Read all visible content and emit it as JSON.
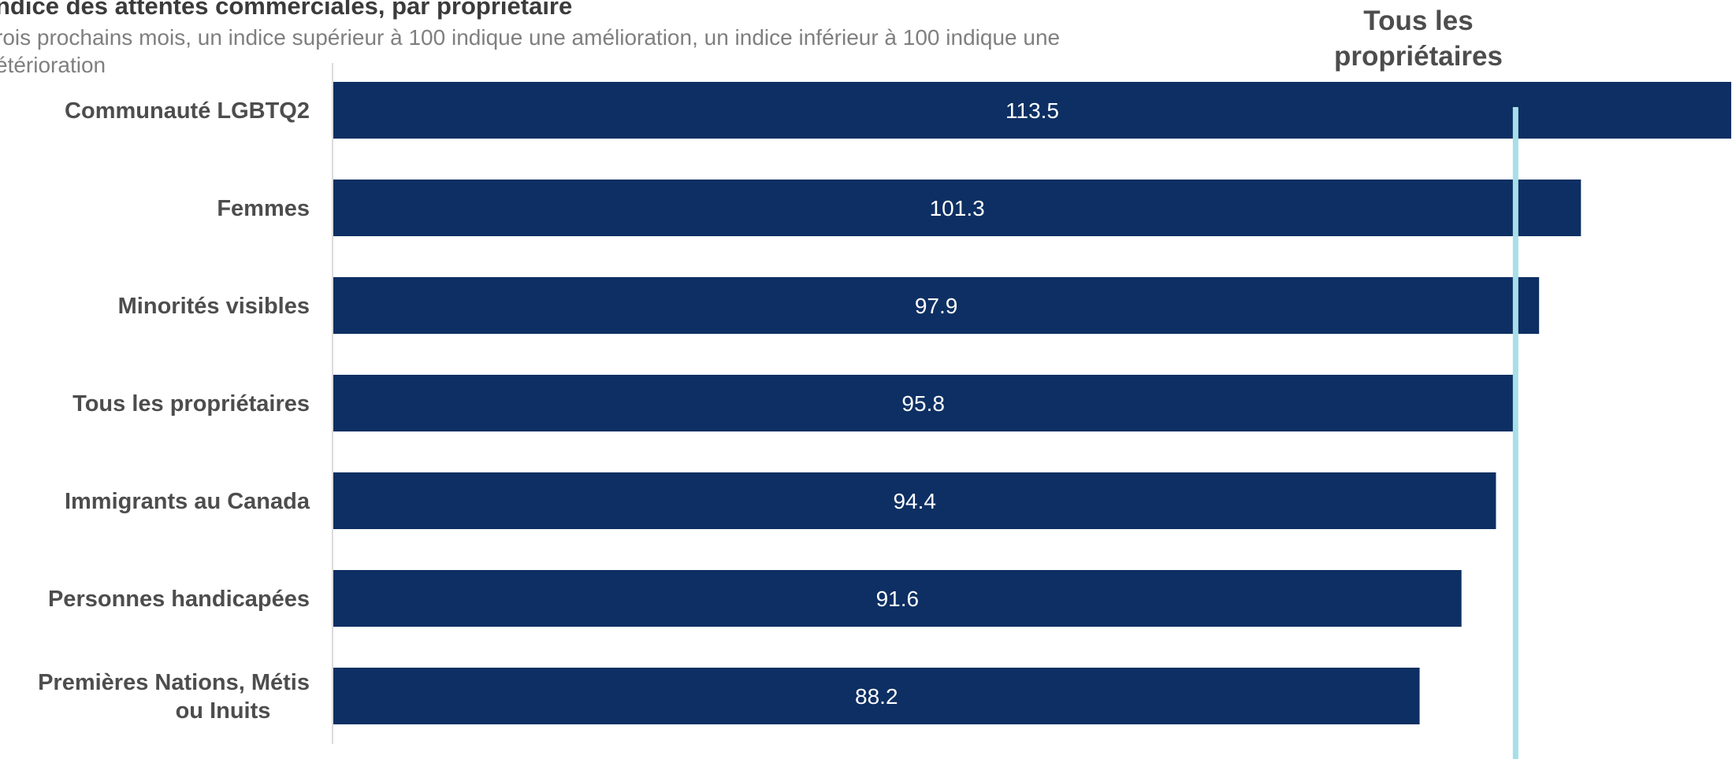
{
  "colors": {
    "bar": "#0d2f63",
    "reference_line": "#a7dfe8",
    "axis_line": "#d0d0d0",
    "title": "#3b3b3b",
    "subtitle": "#7f7f7f",
    "category_label": "#4d4d4d",
    "value_label": "#ffffff"
  },
  "chart_data": {
    "type": "bar",
    "orientation": "horizontal",
    "title": "ndice des attentes commerciales, par propriétaire",
    "subtitle": "rois prochains mois, un indice supérieur à 100 indique une amélioration, un indice inférieur à 100 indique une\nétérioration",
    "categories": [
      [
        "Communauté LGBTQ2"
      ],
      [
        "Femmes"
      ],
      [
        "Minorités visibles"
      ],
      [
        "Tous les propriétaires"
      ],
      [
        "Immigrants au Canada"
      ],
      [
        "Personnes handicapées"
      ],
      [
        "Premières Nations, Métis",
        "ou Inuits"
      ]
    ],
    "values": [
      113.5,
      101.3,
      97.9,
      95.8,
      94.4,
      91.6,
      88.2
    ],
    "data_labels": [
      "113.5",
      "101.3",
      "97.9",
      "95.8",
      "94.4",
      "91.6",
      "88.2"
    ],
    "reference_line": {
      "value": 95.8,
      "label": "Tous les propriétaires"
    },
    "xlim": [
      0,
      113.5
    ],
    "grid": false,
    "legend": "none"
  }
}
